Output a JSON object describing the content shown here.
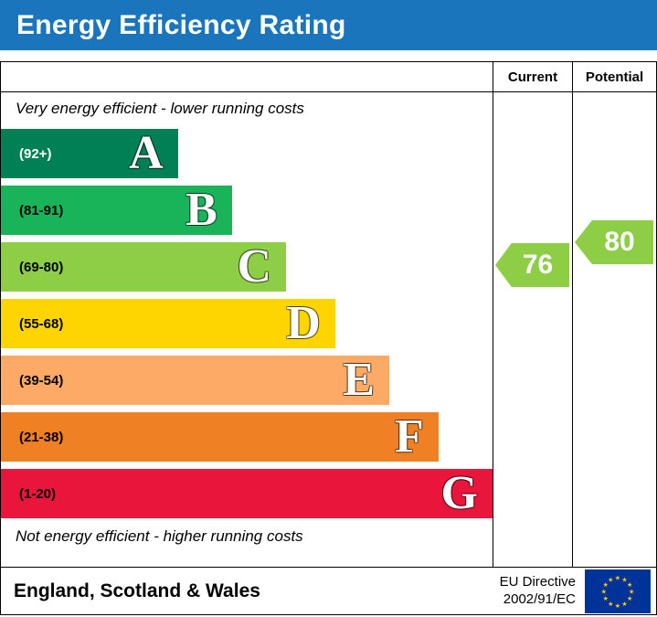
{
  "title": "Energy Efficiency Rating",
  "header": {
    "current": "Current",
    "potential": "Potential"
  },
  "notes": {
    "top": "Very energy efficient - lower running costs",
    "bottom": "Not energy efficient - higher running costs"
  },
  "bands": [
    {
      "letter": "A",
      "range": "(92+)",
      "color": "#008054",
      "width_pct": 36
    },
    {
      "letter": "B",
      "range": "(81-91)",
      "color": "#19b459",
      "width_pct": 47
    },
    {
      "letter": "C",
      "range": "(69-80)",
      "color": "#8dce46",
      "width_pct": 58
    },
    {
      "letter": "D",
      "range": "(55-68)",
      "color": "#ffd500",
      "width_pct": 68
    },
    {
      "letter": "E",
      "range": "(39-54)",
      "color": "#fcaa65",
      "width_pct": 79
    },
    {
      "letter": "F",
      "range": "(21-38)",
      "color": "#ef8023",
      "width_pct": 89
    },
    {
      "letter": "G",
      "range": "(1-20)",
      "color": "#e9153b",
      "width_pct": 100
    }
  ],
  "indicators": {
    "current": {
      "value": "76",
      "color": "#8dce46"
    },
    "potential": {
      "value": "80",
      "color": "#8dce46"
    }
  },
  "footer": {
    "region": "England, Scotland & Wales",
    "directive_line1": "EU Directive",
    "directive_line2": "2002/91/EC"
  },
  "colors": {
    "title_bg": "#1b75bc",
    "title_text": "#ffffff",
    "flag_bg": "#003399",
    "flag_stars": "#ffcc00"
  },
  "chart_data": {
    "type": "bar",
    "title": "Energy Efficiency Rating",
    "categories": [
      "A",
      "B",
      "C",
      "D",
      "E",
      "F",
      "G"
    ],
    "band_ranges": [
      "92+",
      "81-91",
      "69-80",
      "55-68",
      "39-54",
      "21-38",
      "1-20"
    ],
    "band_colors": [
      "#008054",
      "#19b459",
      "#8dce46",
      "#ffd500",
      "#fcaa65",
      "#ef8023",
      "#e9153b"
    ],
    "bar_length_pct": [
      36,
      47,
      58,
      68,
      79,
      89,
      100
    ],
    "series": [
      {
        "name": "Current",
        "value": 76,
        "band": "C"
      },
      {
        "name": "Potential",
        "value": 80,
        "band": "C"
      }
    ],
    "annotations": [
      "Very energy efficient - lower running costs",
      "Not energy efficient - higher running costs"
    ],
    "region": "England, Scotland & Wales",
    "legend_position": "none",
    "grid": false
  }
}
